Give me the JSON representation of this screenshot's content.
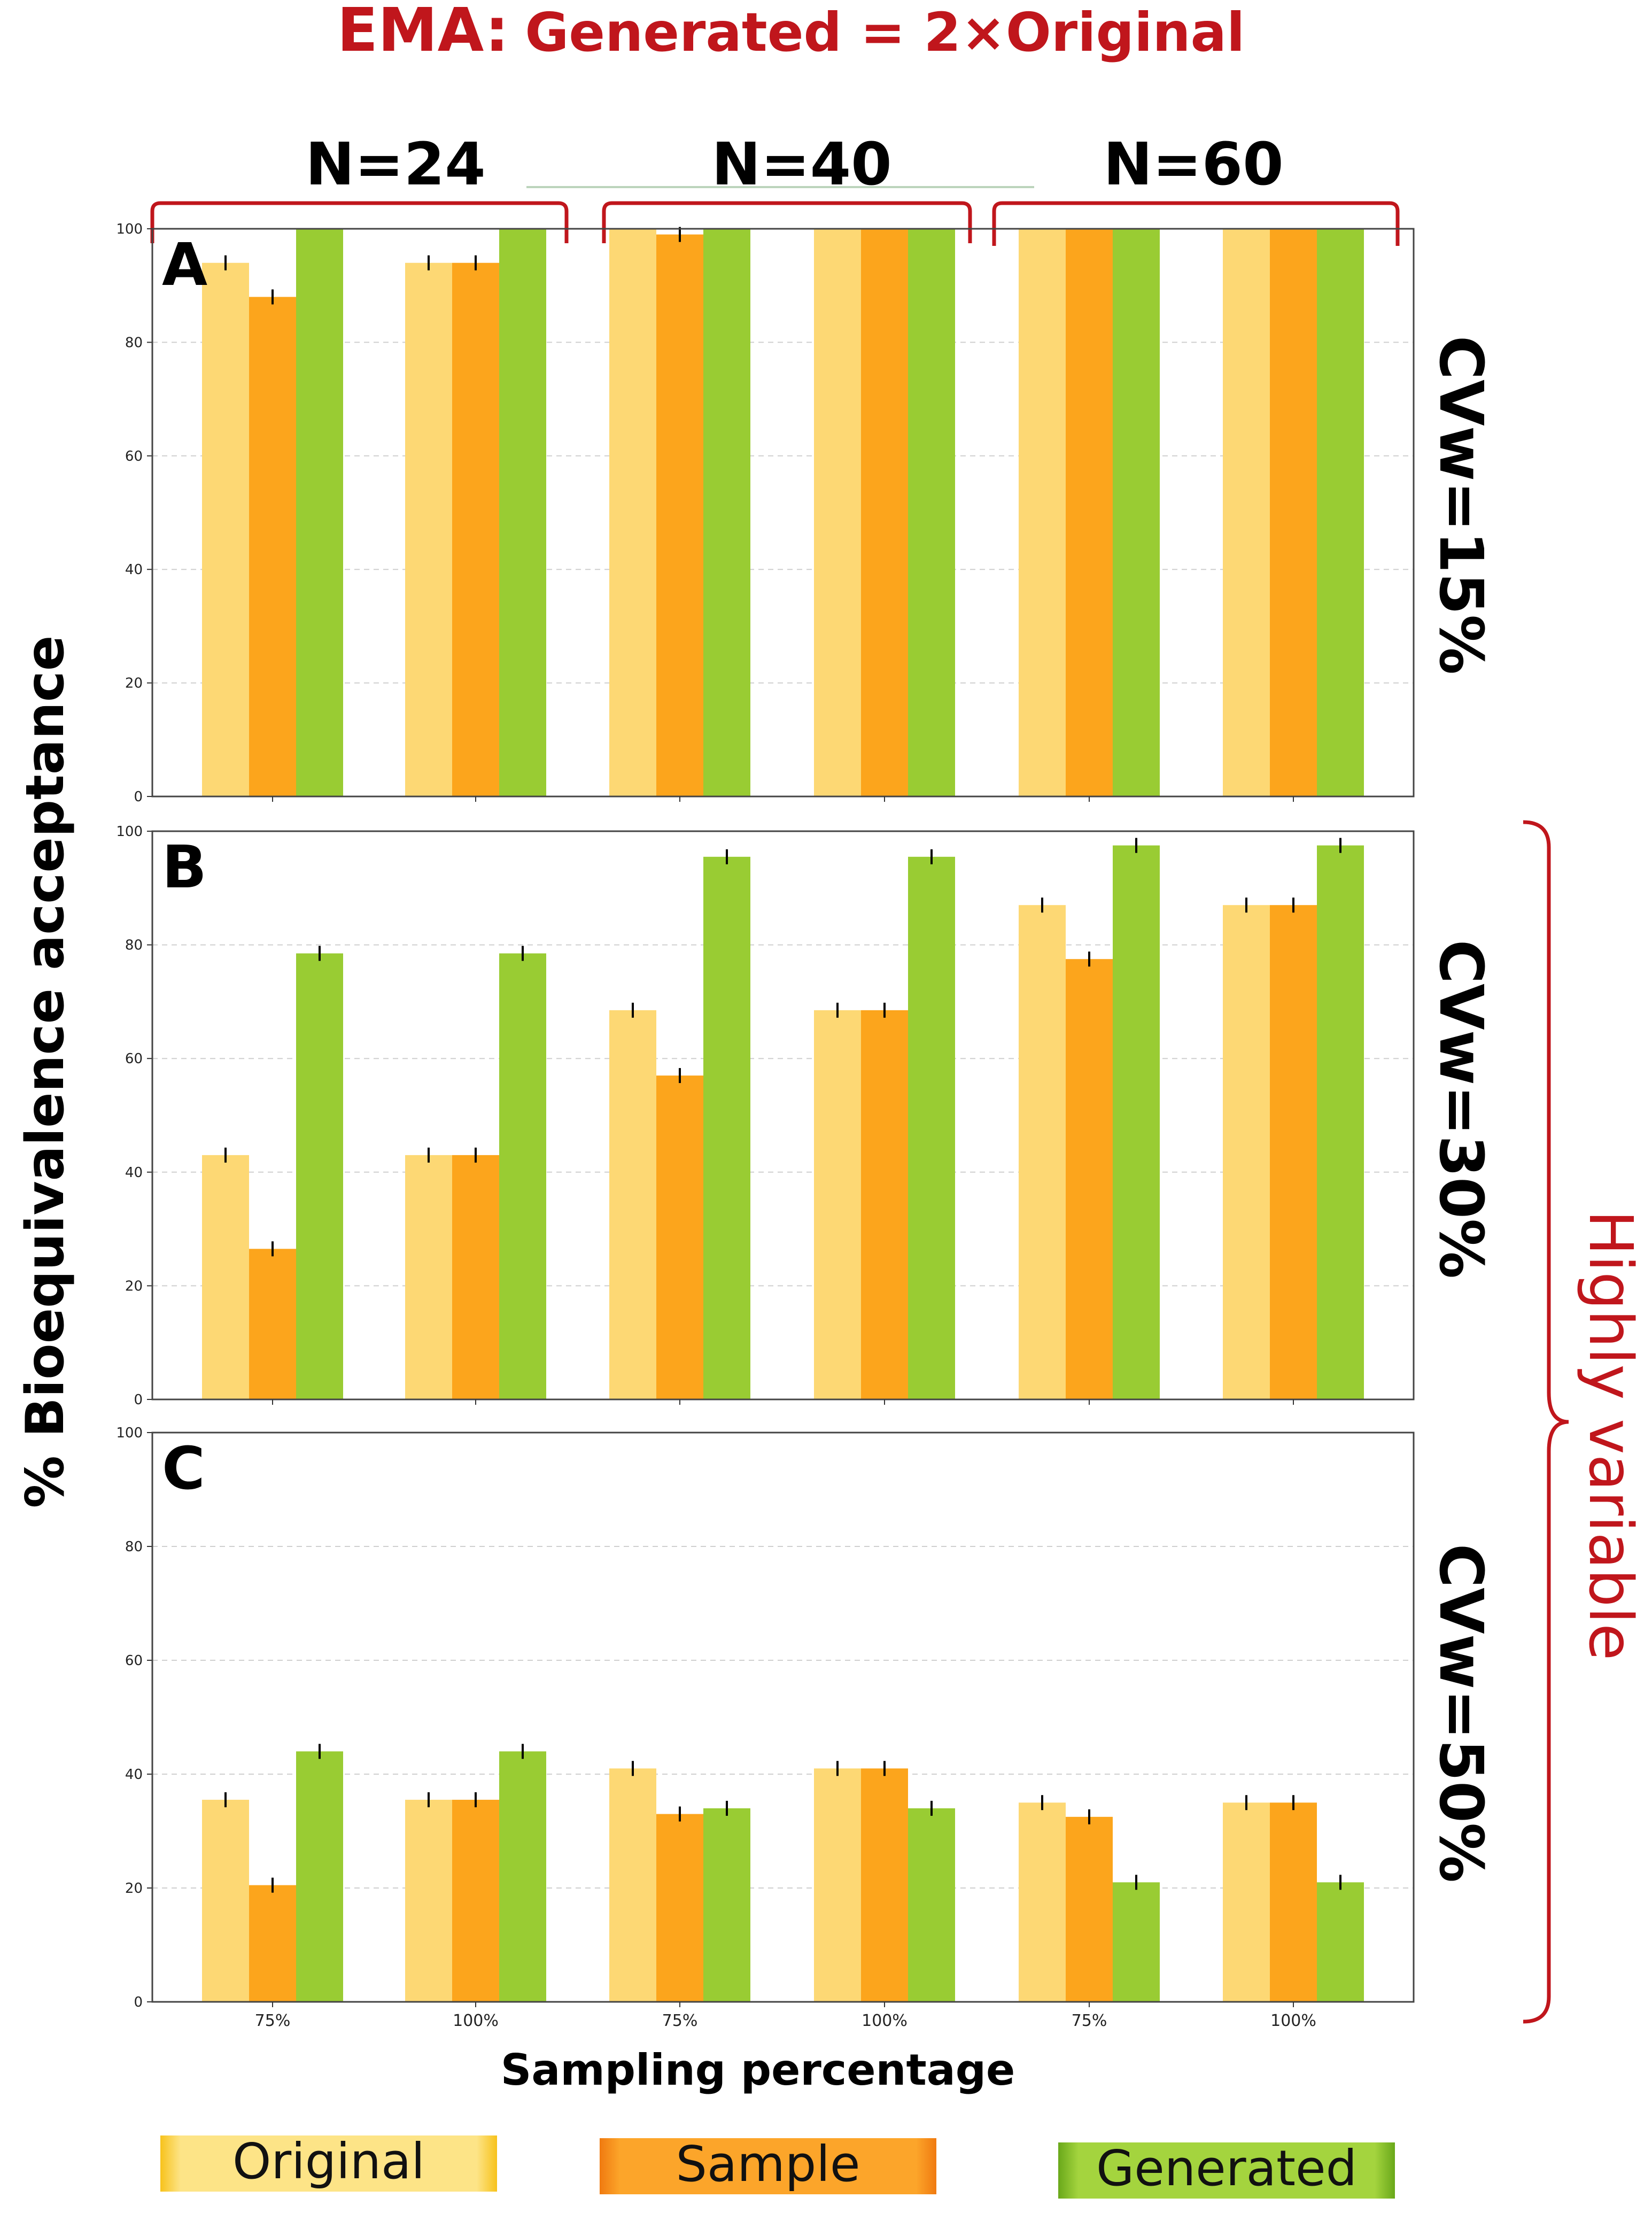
{
  "figure": {
    "title_prefix": "EMA:",
    "title_rest": "Generated = 2×Original",
    "ylabel": "% Bioequivalence acceptance",
    "xlabel": "Sampling percentage",
    "group_labels": [
      "N=24",
      "N=40",
      "N=60"
    ],
    "highly_variable_label": "Highly variable",
    "colors": {
      "title_red": "#c0161c",
      "original": "#fdd874",
      "sample": "#fca51c",
      "generated": "#99cc33"
    }
  },
  "chart_data": [
    {
      "type": "bar",
      "panel_label": "A",
      "side_label": "CVw=15%",
      "categories": [
        "75%",
        "100%",
        "75%",
        "100%",
        "75%",
        "100%"
      ],
      "series": [
        {
          "name": "Original",
          "values": [
            94,
            94,
            100,
            100,
            100,
            100
          ]
        },
        {
          "name": "Sample",
          "values": [
            88,
            94,
            99,
            100,
            100,
            100
          ]
        },
        {
          "name": "Generated",
          "values": [
            100,
            100,
            100,
            100,
            100,
            100
          ]
        }
      ],
      "ylim": [
        0,
        100
      ],
      "yticks": [
        "0",
        "20",
        "40",
        "60",
        "80",
        "100"
      ],
      "grid": true
    },
    {
      "type": "bar",
      "panel_label": "B",
      "side_label": "CVw=30%",
      "categories": [
        "75%",
        "100%",
        "75%",
        "100%",
        "75%",
        "100%"
      ],
      "series": [
        {
          "name": "Original",
          "values": [
            43,
            43,
            68.5,
            68.5,
            87,
            87
          ]
        },
        {
          "name": "Sample",
          "values": [
            26.5,
            43,
            57,
            68.5,
            77.5,
            87
          ]
        },
        {
          "name": "Generated",
          "values": [
            78.5,
            78.5,
            95.5,
            95.5,
            97.5,
            97.5
          ]
        }
      ],
      "ylim": [
        0,
        100
      ],
      "yticks": [
        "0",
        "20",
        "40",
        "60",
        "80",
        "100"
      ],
      "grid": true
    },
    {
      "type": "bar",
      "panel_label": "C",
      "side_label": "CVw=50%",
      "categories": [
        "75%",
        "100%",
        "75%",
        "100%",
        "75%",
        "100%"
      ],
      "series": [
        {
          "name": "Original",
          "values": [
            35.5,
            35.5,
            41,
            41,
            35,
            35
          ]
        },
        {
          "name": "Sample",
          "values": [
            20.5,
            35.5,
            33,
            41,
            32.5,
            35
          ]
        },
        {
          "name": "Generated",
          "values": [
            44,
            44,
            34,
            34,
            21,
            21
          ]
        }
      ],
      "ylim": [
        0,
        100
      ],
      "yticks": [
        "0",
        "20",
        "40",
        "60",
        "80",
        "100"
      ],
      "grid": true
    }
  ],
  "legend": {
    "items": [
      {
        "label": "Original",
        "color": "#fdd874"
      },
      {
        "label": "Sample",
        "color": "#fca51c"
      },
      {
        "label": "Generated",
        "color": "#99cc33"
      }
    ]
  }
}
